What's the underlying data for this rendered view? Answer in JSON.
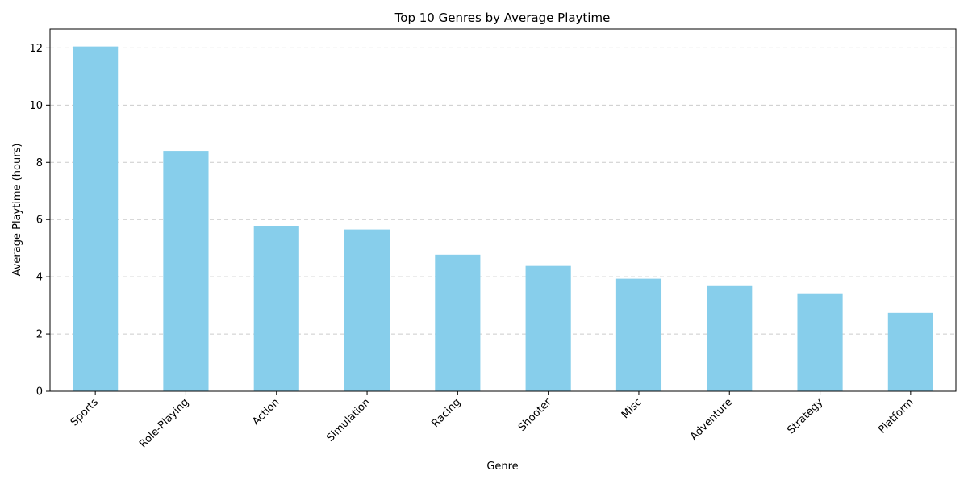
{
  "chart_data": {
    "type": "bar",
    "title": "Top 10 Genres by Average Playtime",
    "xlabel": "Genre",
    "ylabel": "Average Playtime (hours)",
    "categories": [
      "Sports",
      "Role-Playing",
      "Action",
      "Simulation",
      "Racing",
      "Shooter",
      "Misc",
      "Adventure",
      "Strategy",
      "Platform"
    ],
    "values": [
      12.05,
      8.4,
      5.78,
      5.65,
      4.77,
      4.38,
      3.93,
      3.7,
      3.42,
      2.74
    ],
    "ylim": [
      0,
      12.66
    ],
    "yticks": [
      0,
      2,
      4,
      6,
      8,
      10,
      12
    ],
    "grid": "y-dashed",
    "legend": "none",
    "bar_color": "#87ceeb"
  }
}
